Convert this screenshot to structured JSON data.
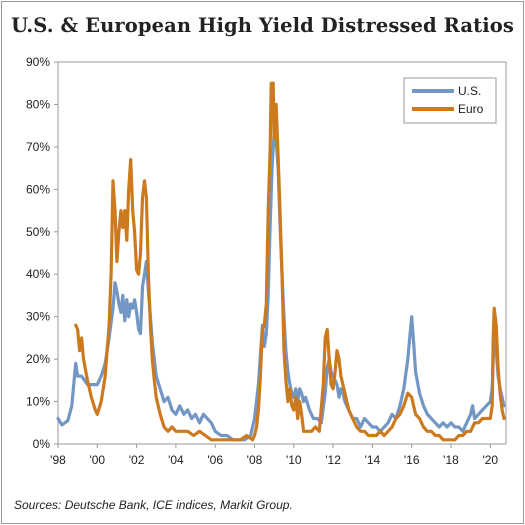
{
  "chart_data": {
    "type": "line",
    "title": "U.S. & European High Yield Distressed Ratios",
    "source": "Sources: Deutsche Bank, ICE indices, Markit Group.",
    "xlabel": "",
    "ylabel": "",
    "xlim": [
      1998,
      2020.8
    ],
    "ylim": [
      0,
      90
    ],
    "x_ticks": [
      {
        "value": 1998,
        "label": "'98"
      },
      {
        "value": 2000,
        "label": "'00"
      },
      {
        "value": 2002,
        "label": "'02"
      },
      {
        "value": 2004,
        "label": "'04"
      },
      {
        "value": 2006,
        "label": "'06"
      },
      {
        "value": 2008,
        "label": "'08"
      },
      {
        "value": 2010,
        "label": "'10"
      },
      {
        "value": 2012,
        "label": "'12"
      },
      {
        "value": 2014,
        "label": "'14"
      },
      {
        "value": 2016,
        "label": "'16"
      },
      {
        "value": 2018,
        "label": "'18"
      },
      {
        "value": 2020,
        "label": "'20"
      }
    ],
    "y_ticks": [
      {
        "value": 0,
        "label": "0%"
      },
      {
        "value": 10,
        "label": "10%"
      },
      {
        "value": 20,
        "label": "20%"
      },
      {
        "value": 30,
        "label": "30%"
      },
      {
        "value": 40,
        "label": "40%"
      },
      {
        "value": 50,
        "label": "50%"
      },
      {
        "value": 60,
        "label": "60%"
      },
      {
        "value": 70,
        "label": "70%"
      },
      {
        "value": 80,
        "label": "80%"
      },
      {
        "value": 90,
        "label": "90%"
      }
    ],
    "grid": false,
    "legend_position": "top-right",
    "series": [
      {
        "name": "U.S.",
        "color": "#7397c4",
        "points": [
          [
            1998.0,
            6
          ],
          [
            1998.2,
            4.5
          ],
          [
            1998.5,
            5.5
          ],
          [
            1998.7,
            9
          ],
          [
            1998.9,
            19
          ],
          [
            1999.0,
            16
          ],
          [
            1999.2,
            16
          ],
          [
            1999.5,
            14
          ],
          [
            1999.8,
            14
          ],
          [
            2000.0,
            14
          ],
          [
            2000.2,
            16
          ],
          [
            2000.4,
            19
          ],
          [
            2000.6,
            25
          ],
          [
            2000.8,
            32
          ],
          [
            2000.9,
            38
          ],
          [
            2001.0,
            36
          ],
          [
            2001.1,
            33
          ],
          [
            2001.2,
            31
          ],
          [
            2001.3,
            35
          ],
          [
            2001.4,
            29
          ],
          [
            2001.5,
            34
          ],
          [
            2001.6,
            30
          ],
          [
            2001.7,
            33
          ],
          [
            2001.8,
            32
          ],
          [
            2001.9,
            34
          ],
          [
            2002.0,
            31
          ],
          [
            2002.1,
            27
          ],
          [
            2002.2,
            26
          ],
          [
            2002.3,
            37
          ],
          [
            2002.4,
            40
          ],
          [
            2002.5,
            43
          ],
          [
            2002.6,
            36
          ],
          [
            2002.7,
            30
          ],
          [
            2002.8,
            24
          ],
          [
            2002.9,
            20
          ],
          [
            2003.0,
            16
          ],
          [
            2003.2,
            13
          ],
          [
            2003.4,
            10
          ],
          [
            2003.6,
            11
          ],
          [
            2003.8,
            8
          ],
          [
            2004.0,
            7
          ],
          [
            2004.2,
            9
          ],
          [
            2004.4,
            7
          ],
          [
            2004.6,
            8
          ],
          [
            2004.8,
            6
          ],
          [
            2005.0,
            7
          ],
          [
            2005.2,
            5
          ],
          [
            2005.4,
            7
          ],
          [
            2005.6,
            6
          ],
          [
            2005.8,
            5
          ],
          [
            2006.0,
            3
          ],
          [
            2006.3,
            2
          ],
          [
            2006.6,
            2
          ],
          [
            2006.9,
            1
          ],
          [
            2007.2,
            1
          ],
          [
            2007.5,
            1
          ],
          [
            2007.8,
            2
          ],
          [
            2008.0,
            6
          ],
          [
            2008.2,
            14
          ],
          [
            2008.4,
            28
          ],
          [
            2008.5,
            23
          ],
          [
            2008.6,
            26
          ],
          [
            2008.7,
            35
          ],
          [
            2008.8,
            52
          ],
          [
            2008.9,
            66
          ],
          [
            2009.0,
            73
          ],
          [
            2009.1,
            72
          ],
          [
            2009.2,
            65
          ],
          [
            2009.3,
            52
          ],
          [
            2009.4,
            40
          ],
          [
            2009.5,
            30
          ],
          [
            2009.6,
            22
          ],
          [
            2009.7,
            17
          ],
          [
            2009.8,
            14
          ],
          [
            2009.9,
            12
          ],
          [
            2010.0,
            11
          ],
          [
            2010.1,
            13
          ],
          [
            2010.2,
            10
          ],
          [
            2010.3,
            13
          ],
          [
            2010.4,
            12
          ],
          [
            2010.5,
            10
          ],
          [
            2010.6,
            11
          ],
          [
            2010.8,
            8
          ],
          [
            2011.0,
            6
          ],
          [
            2011.2,
            6
          ],
          [
            2011.4,
            5
          ],
          [
            2011.6,
            12
          ],
          [
            2011.7,
            18
          ],
          [
            2011.8,
            20
          ],
          [
            2011.9,
            17
          ],
          [
            2012.0,
            16
          ],
          [
            2012.1,
            15
          ],
          [
            2012.2,
            14
          ],
          [
            2012.3,
            11
          ],
          [
            2012.4,
            13
          ],
          [
            2012.5,
            12
          ],
          [
            2012.6,
            10
          ],
          [
            2012.8,
            8
          ],
          [
            2013.0,
            6
          ],
          [
            2013.2,
            6
          ],
          [
            2013.4,
            4
          ],
          [
            2013.6,
            6
          ],
          [
            2013.8,
            5
          ],
          [
            2014.0,
            4
          ],
          [
            2014.2,
            4
          ],
          [
            2014.4,
            3
          ],
          [
            2014.6,
            4
          ],
          [
            2014.8,
            5
          ],
          [
            2015.0,
            7
          ],
          [
            2015.2,
            6
          ],
          [
            2015.4,
            9
          ],
          [
            2015.6,
            13
          ],
          [
            2015.8,
            20
          ],
          [
            2015.9,
            25
          ],
          [
            2016.0,
            30
          ],
          [
            2016.1,
            24
          ],
          [
            2016.2,
            17
          ],
          [
            2016.4,
            12
          ],
          [
            2016.6,
            9
          ],
          [
            2016.8,
            7
          ],
          [
            2017.0,
            6
          ],
          [
            2017.2,
            5
          ],
          [
            2017.4,
            4
          ],
          [
            2017.6,
            5
          ],
          [
            2017.8,
            4
          ],
          [
            2018.0,
            5
          ],
          [
            2018.2,
            4
          ],
          [
            2018.4,
            4
          ],
          [
            2018.6,
            3
          ],
          [
            2018.8,
            5
          ],
          [
            2019.0,
            7
          ],
          [
            2019.1,
            9
          ],
          [
            2019.2,
            6
          ],
          [
            2019.4,
            7
          ],
          [
            2019.6,
            8
          ],
          [
            2019.8,
            9
          ],
          [
            2020.0,
            10
          ],
          [
            2020.1,
            13
          ],
          [
            2020.2,
            27
          ],
          [
            2020.3,
            22
          ],
          [
            2020.4,
            16
          ],
          [
            2020.5,
            13
          ],
          [
            2020.6,
            11
          ],
          [
            2020.7,
            9
          ]
        ]
      },
      {
        "name": "Euro",
        "color": "#cc7a1d",
        "points": [
          [
            1998.9,
            28
          ],
          [
            1999.0,
            27
          ],
          [
            1999.1,
            22
          ],
          [
            1999.2,
            25
          ],
          [
            1999.3,
            20
          ],
          [
            1999.5,
            15
          ],
          [
            1999.7,
            11
          ],
          [
            1999.9,
            8
          ],
          [
            2000.0,
            7
          ],
          [
            2000.2,
            10
          ],
          [
            2000.4,
            16
          ],
          [
            2000.5,
            22
          ],
          [
            2000.6,
            28
          ],
          [
            2000.7,
            40
          ],
          [
            2000.8,
            62
          ],
          [
            2000.9,
            55
          ],
          [
            2001.0,
            43
          ],
          [
            2001.1,
            50
          ],
          [
            2001.2,
            55
          ],
          [
            2001.3,
            51
          ],
          [
            2001.4,
            55
          ],
          [
            2001.5,
            48
          ],
          [
            2001.6,
            60
          ],
          [
            2001.7,
            67
          ],
          [
            2001.8,
            55
          ],
          [
            2001.9,
            50
          ],
          [
            2002.0,
            41
          ],
          [
            2002.1,
            40
          ],
          [
            2002.2,
            45
          ],
          [
            2002.3,
            58
          ],
          [
            2002.4,
            62
          ],
          [
            2002.5,
            58
          ],
          [
            2002.6,
            40
          ],
          [
            2002.7,
            28
          ],
          [
            2002.8,
            20
          ],
          [
            2002.9,
            15
          ],
          [
            2003.0,
            11
          ],
          [
            2003.2,
            7
          ],
          [
            2003.4,
            4
          ],
          [
            2003.6,
            3
          ],
          [
            2003.8,
            4
          ],
          [
            2004.0,
            3
          ],
          [
            2004.3,
            3
          ],
          [
            2004.6,
            3
          ],
          [
            2004.9,
            2
          ],
          [
            2005.2,
            3
          ],
          [
            2005.5,
            2
          ],
          [
            2005.8,
            1
          ],
          [
            2006.1,
            1
          ],
          [
            2006.4,
            1
          ],
          [
            2006.7,
            1
          ],
          [
            2007.0,
            1
          ],
          [
            2007.3,
            1
          ],
          [
            2007.6,
            2
          ],
          [
            2007.9,
            1
          ],
          [
            2008.0,
            2
          ],
          [
            2008.1,
            4
          ],
          [
            2008.2,
            8
          ],
          [
            2008.3,
            16
          ],
          [
            2008.4,
            27
          ],
          [
            2008.5,
            28
          ],
          [
            2008.6,
            33
          ],
          [
            2008.7,
            55
          ],
          [
            2008.8,
            70
          ],
          [
            2008.85,
            85
          ],
          [
            2008.95,
            85
          ],
          [
            2009.0,
            72
          ],
          [
            2009.1,
            80
          ],
          [
            2009.2,
            68
          ],
          [
            2009.3,
            55
          ],
          [
            2009.4,
            40
          ],
          [
            2009.5,
            22
          ],
          [
            2009.6,
            15
          ],
          [
            2009.7,
            10
          ],
          [
            2009.8,
            13
          ],
          [
            2009.9,
            9
          ],
          [
            2010.0,
            8
          ],
          [
            2010.1,
            11
          ],
          [
            2010.2,
            6
          ],
          [
            2010.3,
            10
          ],
          [
            2010.4,
            7
          ],
          [
            2010.5,
            3
          ],
          [
            2010.7,
            3
          ],
          [
            2010.9,
            3
          ],
          [
            2011.1,
            4
          ],
          [
            2011.3,
            3
          ],
          [
            2011.5,
            14
          ],
          [
            2011.6,
            25
          ],
          [
            2011.7,
            27
          ],
          [
            2011.8,
            20
          ],
          [
            2011.9,
            14
          ],
          [
            2012.0,
            13
          ],
          [
            2012.1,
            17
          ],
          [
            2012.2,
            22
          ],
          [
            2012.3,
            20
          ],
          [
            2012.4,
            16
          ],
          [
            2012.5,
            14
          ],
          [
            2012.6,
            12
          ],
          [
            2012.7,
            10
          ],
          [
            2012.8,
            8
          ],
          [
            2013.0,
            6
          ],
          [
            2013.2,
            4
          ],
          [
            2013.4,
            3
          ],
          [
            2013.6,
            3
          ],
          [
            2013.8,
            2
          ],
          [
            2014.0,
            2
          ],
          [
            2014.2,
            2
          ],
          [
            2014.4,
            3
          ],
          [
            2014.6,
            2
          ],
          [
            2014.8,
            3
          ],
          [
            2015.0,
            4
          ],
          [
            2015.2,
            6
          ],
          [
            2015.4,
            7
          ],
          [
            2015.6,
            9
          ],
          [
            2015.8,
            12
          ],
          [
            2016.0,
            11
          ],
          [
            2016.1,
            9
          ],
          [
            2016.2,
            7
          ],
          [
            2016.4,
            6
          ],
          [
            2016.6,
            4
          ],
          [
            2016.8,
            3
          ],
          [
            2017.0,
            3
          ],
          [
            2017.2,
            2
          ],
          [
            2017.4,
            2
          ],
          [
            2017.6,
            1
          ],
          [
            2017.8,
            1
          ],
          [
            2018.0,
            1
          ],
          [
            2018.2,
            1
          ],
          [
            2018.4,
            2
          ],
          [
            2018.6,
            2
          ],
          [
            2018.8,
            3
          ],
          [
            2019.0,
            3
          ],
          [
            2019.2,
            5
          ],
          [
            2019.4,
            5
          ],
          [
            2019.6,
            6
          ],
          [
            2019.8,
            6
          ],
          [
            2020.0,
            6
          ],
          [
            2020.1,
            9
          ],
          [
            2020.15,
            25
          ],
          [
            2020.2,
            32
          ],
          [
            2020.3,
            28
          ],
          [
            2020.4,
            18
          ],
          [
            2020.5,
            12
          ],
          [
            2020.6,
            8
          ],
          [
            2020.7,
            6
          ]
        ]
      }
    ]
  }
}
